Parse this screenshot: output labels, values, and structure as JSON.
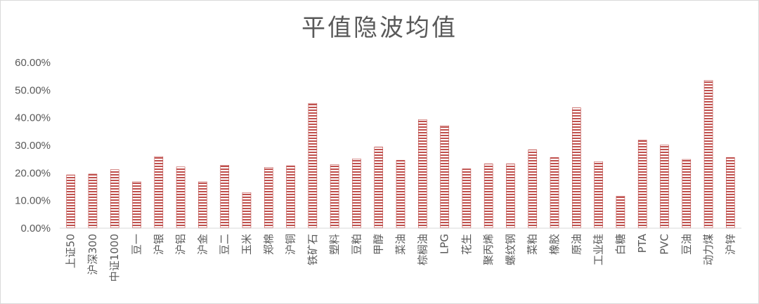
{
  "chart_data": {
    "type": "bar",
    "title": "平值隐波均值",
    "xlabel": "",
    "ylabel": "",
    "ylim": [
      0,
      60
    ],
    "yticks": [
      "0.00%",
      "10.00%",
      "20.00%",
      "30.00%",
      "40.00%",
      "50.00%",
      "60.00%"
    ],
    "categories": [
      "上证50",
      "沪深300",
      "中证1000",
      "豆一",
      "沪银",
      "沪铝",
      "沪金",
      "豆二",
      "玉米",
      "郑棉",
      "沪铜",
      "铁矿石",
      "塑料",
      "豆粕",
      "甲醇",
      "菜油",
      "棕榈油",
      "LPG",
      "花生",
      "聚丙烯",
      "螺纹钢",
      "菜粕",
      "橡胶",
      "原油",
      "工业硅",
      "白糖",
      "PTA",
      "PVC",
      "豆油",
      "动力煤",
      "沪锌"
    ],
    "values": [
      19.3,
      19.6,
      21.2,
      16.8,
      25.9,
      22.2,
      16.8,
      22.8,
      12.9,
      22.0,
      22.6,
      45.2,
      23.0,
      25.1,
      29.4,
      24.6,
      39.3,
      37.1,
      21.5,
      23.3,
      23.3,
      28.4,
      25.6,
      43.6,
      24.1,
      11.6,
      31.9,
      30.1,
      24.9,
      53.5,
      25.6
    ],
    "grid": false,
    "legend": "none",
    "bar_color": "#c0504d"
  }
}
